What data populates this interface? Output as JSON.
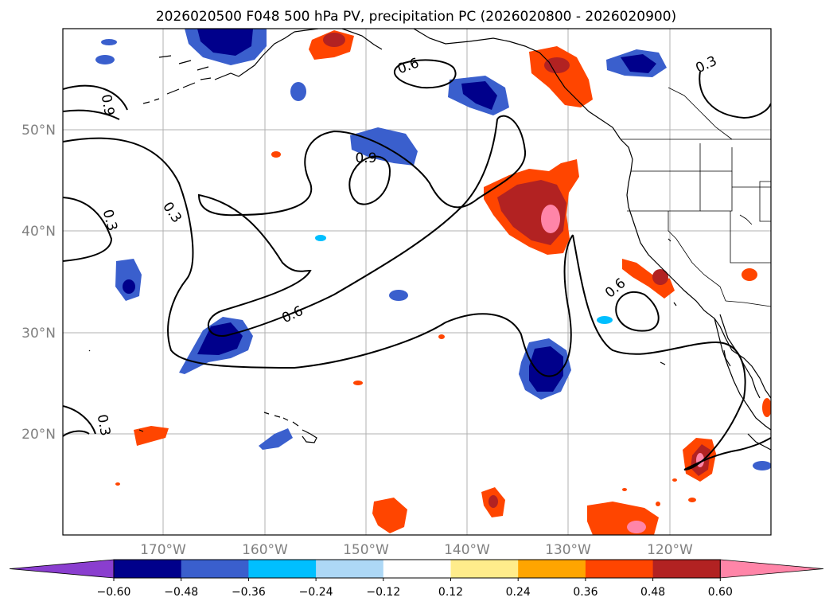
{
  "title": "2026020500 F048 500 hPa PV, precipitation PC (2026020800 - 2026020900)",
  "lat_labels": [
    "50°N",
    "40°N",
    "30°N",
    "20°N"
  ],
  "lon_labels": [
    "170°W",
    "160°W",
    "150°W",
    "140°W",
    "130°W",
    "120°W"
  ],
  "colorbar": {
    "ticks": [
      "−0.60",
      "−0.48",
      "−0.36",
      "−0.24",
      "−0.12",
      "0.12",
      "0.24",
      "0.36",
      "0.48",
      "0.60"
    ],
    "colors": [
      "#8a3ecf",
      "#00008b",
      "#3a5fcd",
      "#00bfff",
      "#add8f6",
      "#ffffff",
      "#ffec8b",
      "#ffa500",
      "#ff4500",
      "#b22222",
      "#ff85a8"
    ]
  },
  "contour_labels": [
    "0.6",
    "0.3",
    "0.9",
    "0.3",
    "0.3",
    "0.9",
    "0.6",
    "0.6",
    "0.3"
  ]
}
